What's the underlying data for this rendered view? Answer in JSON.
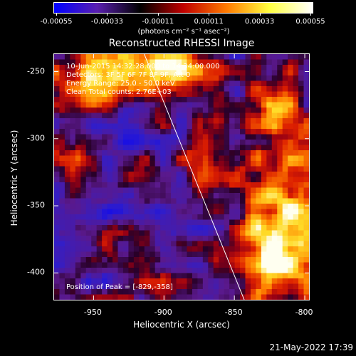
{
  "colorbar": {
    "tick_labels": [
      "-0.00055",
      "-0.00033",
      "-0.00011",
      "0.00011",
      "0.00033",
      "0.00055"
    ],
    "units": "(photons cm⁻² s⁻¹ asec⁻²)",
    "colors": [
      "#0000ff",
      "#5a1fb0",
      "#000000",
      "#c00000",
      "#ff7a00",
      "#ffff40",
      "#ffffff"
    ]
  },
  "title": "Reconstructed RHESSI Image",
  "info": {
    "time_range": "10-Jun-2015 14:32:28.000 to 14:34:00.000",
    "detectors": "Detectors: 3F 5F 6F 7F 8F 9F, Att 0",
    "energy_range": "Energy Range: 25.0 - 50.0 keV",
    "clean": "Clean     Total counts: 2.76E+03",
    "peak_position": "Position of Peak = [-829,-358]"
  },
  "chart_data": {
    "type": "heatmap",
    "title": "Reconstructed RHESSI Image",
    "xlabel": "Heliocentric X (arcsec)",
    "ylabel": "Heliocentric Y (arcsec)",
    "x_tick_labels": [
      "-950",
      "-900",
      "-850",
      "-800"
    ],
    "y_tick_labels": [
      "-250",
      "-300",
      "-350",
      "-400"
    ],
    "x_ticks": [
      -950,
      -900,
      -850,
      -800
    ],
    "y_ticks": [
      -250,
      -300,
      -350,
      -400
    ],
    "xlim": [
      -978,
      -797
    ],
    "ylim": [
      -420,
      -237
    ],
    "value_range": [
      -0.00055,
      0.00055
    ],
    "limb_line": [
      [
        -914,
        -237
      ],
      [
        -843,
        -420
      ]
    ],
    "peak": [
      -829,
      -358
    ]
  },
  "footer": {
    "date": "21-May-2022 17:39"
  }
}
